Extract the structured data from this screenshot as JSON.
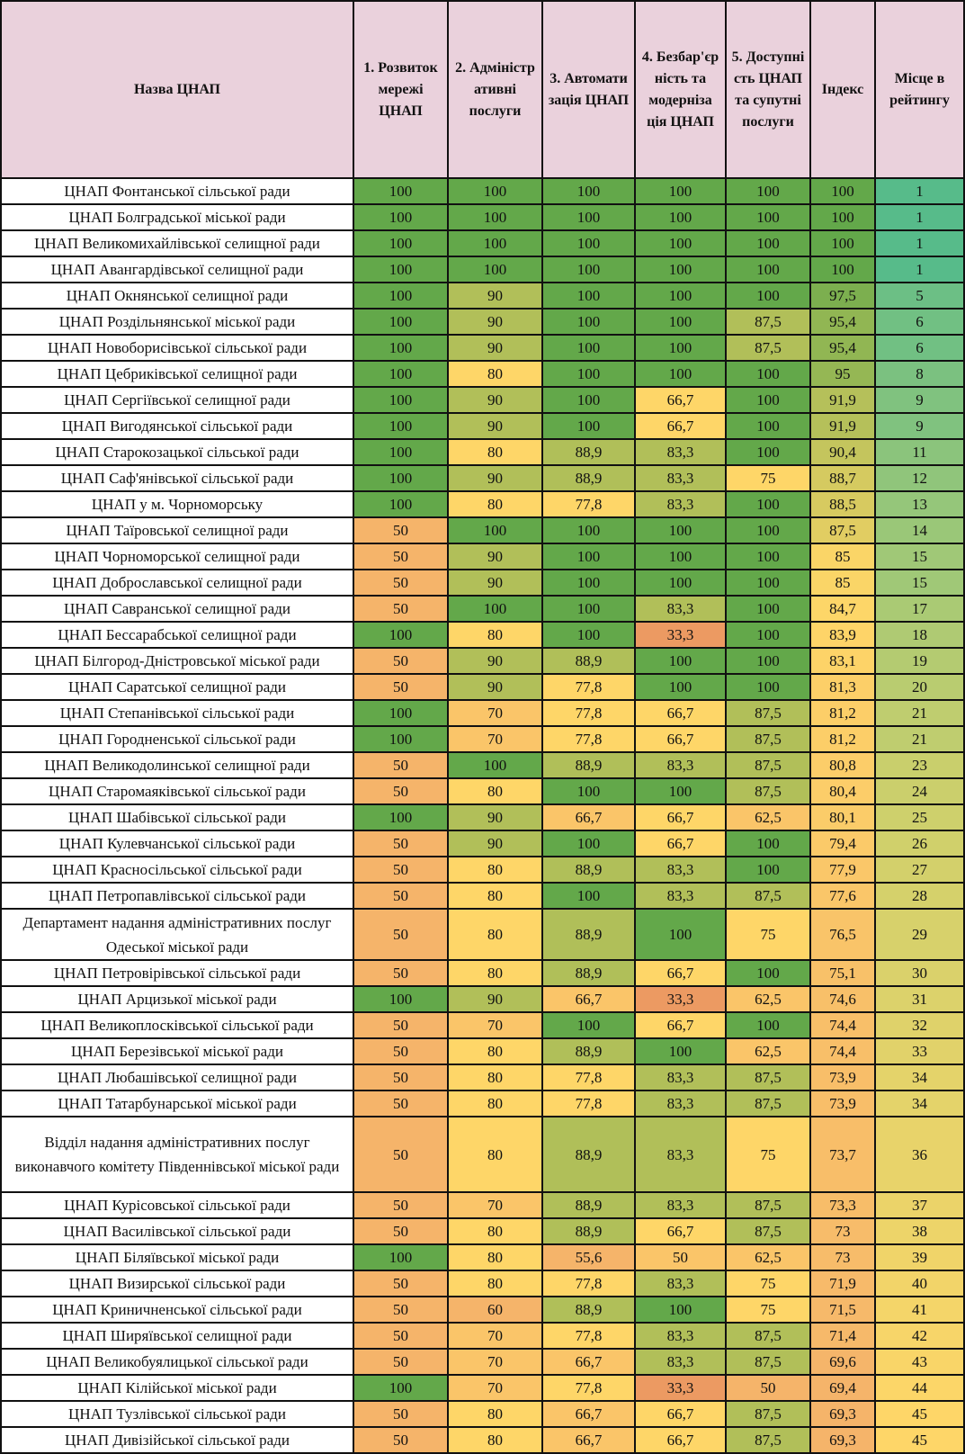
{
  "headers": [
    "Назва ЦНАП",
    "1. Розвиток мережі ЦНАП",
    "2. Адміністр ативні послуги",
    "3. Автомати зація ЦНАП",
    "4. Безбар'єр ність та модерніза ція ЦНАП",
    "5. Доступні сть ЦНАП та супутні послуги",
    "Індекс",
    "Місце в рейтингу"
  ],
  "rows": [
    [
      "ЦНАП Фонтанської сільської ради",
      "100",
      "100",
      "100",
      "100",
      "100",
      "100",
      "1"
    ],
    [
      "ЦНАП Болградської міської ради",
      "100",
      "100",
      "100",
      "100",
      "100",
      "100",
      "1"
    ],
    [
      "ЦНАП Великомихайлівської селищної ради",
      "100",
      "100",
      "100",
      "100",
      "100",
      "100",
      "1"
    ],
    [
      "ЦНАП Авангардівської селищної ради",
      "100",
      "100",
      "100",
      "100",
      "100",
      "100",
      "1"
    ],
    [
      "ЦНАП Окнянської селищної ради",
      "100",
      "90",
      "100",
      "100",
      "100",
      "97,5",
      "5"
    ],
    [
      "ЦНАП Роздільнянської міської ради",
      "100",
      "90",
      "100",
      "100",
      "87,5",
      "95,4",
      "6"
    ],
    [
      "ЦНАП Новоборисівської сільської ради",
      "100",
      "90",
      "100",
      "100",
      "87,5",
      "95,4",
      "6"
    ],
    [
      "ЦНАП Цебриківської селищної ради",
      "100",
      "80",
      "100",
      "100",
      "100",
      "95",
      "8"
    ],
    [
      "ЦНАП Сергіївської селищної ради",
      "100",
      "90",
      "100",
      "66,7",
      "100",
      "91,9",
      "9"
    ],
    [
      "ЦНАП Вигодянської сільської ради",
      "100",
      "90",
      "100",
      "66,7",
      "100",
      "91,9",
      "9"
    ],
    [
      "ЦНАП Старокозацької сільської ради",
      "100",
      "80",
      "88,9",
      "83,3",
      "100",
      "90,4",
      "11"
    ],
    [
      "ЦНАП Саф'янівської сільської ради",
      "100",
      "90",
      "88,9",
      "83,3",
      "75",
      "88,7",
      "12"
    ],
    [
      "ЦНАП у м. Чорноморську",
      "100",
      "80",
      "77,8",
      "83,3",
      "100",
      "88,5",
      "13"
    ],
    [
      "ЦНАП Таїровської селищної ради",
      "50",
      "100",
      "100",
      "100",
      "100",
      "87,5",
      "14"
    ],
    [
      "ЦНАП Чорноморської селищної ради",
      "50",
      "90",
      "100",
      "100",
      "100",
      "85",
      "15"
    ],
    [
      "ЦНАП Доброславської селищної ради",
      "50",
      "90",
      "100",
      "100",
      "100",
      "85",
      "15"
    ],
    [
      "ЦНАП Савранської селищної ради",
      "50",
      "100",
      "100",
      "83,3",
      "100",
      "84,7",
      "17"
    ],
    [
      "ЦНАП Бессарабської селищної ради",
      "100",
      "80",
      "100",
      "33,3",
      "100",
      "83,9",
      "18"
    ],
    [
      "ЦНАП Білгород-Дністровської міської ради",
      "50",
      "90",
      "88,9",
      "100",
      "100",
      "83,1",
      "19"
    ],
    [
      "ЦНАП Саратської селищної ради",
      "50",
      "90",
      "77,8",
      "100",
      "100",
      "81,3",
      "20"
    ],
    [
      "ЦНАП Степанівської сільської ради",
      "100",
      "70",
      "77,8",
      "66,7",
      "87,5",
      "81,2",
      "21"
    ],
    [
      "ЦНАП Городненської сільської ради",
      "100",
      "70",
      "77,8",
      "66,7",
      "87,5",
      "81,2",
      "21"
    ],
    [
      "ЦНАП Великодолинської селищної ради",
      "50",
      "100",
      "88,9",
      "83,3",
      "87,5",
      "80,8",
      "23"
    ],
    [
      "ЦНАП Старомаяківської сільської ради",
      "50",
      "80",
      "100",
      "100",
      "87,5",
      "80,4",
      "24"
    ],
    [
      "ЦНАП Шабівської сільської ради",
      "100",
      "90",
      "66,7",
      "66,7",
      "62,5",
      "80,1",
      "25"
    ],
    [
      "ЦНАП Кулевчанської сільської ради",
      "50",
      "90",
      "100",
      "66,7",
      "100",
      "79,4",
      "26"
    ],
    [
      "ЦНАП Красносільської сільської ради",
      "50",
      "80",
      "88,9",
      "83,3",
      "100",
      "77,9",
      "27"
    ],
    [
      "ЦНАП Петропавлівської сільської ради",
      "50",
      "80",
      "100",
      "83,3",
      "87,5",
      "77,6",
      "28"
    ],
    [
      "Департамент надання адміністративних послуг Одеської міської ради",
      "50",
      "80",
      "88,9",
      "100",
      "75",
      "76,5",
      "29"
    ],
    [
      "ЦНАП Петровірівської сільської ради",
      "50",
      "80",
      "88,9",
      "66,7",
      "100",
      "75,1",
      "30"
    ],
    [
      "ЦНАП Арцизької міської ради",
      "100",
      "90",
      "66,7",
      "33,3",
      "62,5",
      "74,6",
      "31"
    ],
    [
      "ЦНАП Великоплосківської сільської ради",
      "50",
      "70",
      "100",
      "66,7",
      "100",
      "74,4",
      "32"
    ],
    [
      "ЦНАП Березівської міської ради",
      "50",
      "80",
      "88,9",
      "100",
      "62,5",
      "74,4",
      "33"
    ],
    [
      "ЦНАП Любашівської селищної ради",
      "50",
      "80",
      "77,8",
      "83,3",
      "87,5",
      "73,9",
      "34"
    ],
    [
      "ЦНАП Татарбунарської міської ради",
      "50",
      "80",
      "77,8",
      "83,3",
      "87,5",
      "73,9",
      "34"
    ],
    [
      "Відділ надання адміністративних послуг виконавчого комітету Південнівської міської ради",
      "50",
      "80",
      "88,9",
      "83,3",
      "75",
      "73,7",
      "36"
    ],
    [
      "ЦНАП Курісовської сільської ради",
      "50",
      "70",
      "88,9",
      "83,3",
      "87,5",
      "73,3",
      "37"
    ],
    [
      "ЦНАП Василівської сільської ради",
      "50",
      "80",
      "88,9",
      "66,7",
      "87,5",
      "73",
      "38"
    ],
    [
      "ЦНАП Біляївської міської ради",
      "100",
      "80",
      "55,6",
      "50",
      "62,5",
      "73",
      "39"
    ],
    [
      "ЦНАП Визирської сільської ради",
      "50",
      "80",
      "77,8",
      "83,3",
      "75",
      "71,9",
      "40"
    ],
    [
      "ЦНАП Криничненської сільської ради",
      "50",
      "60",
      "88,9",
      "100",
      "75",
      "71,5",
      "41"
    ],
    [
      "ЦНАП Ширяївської селищної ради",
      "50",
      "70",
      "77,8",
      "83,3",
      "87,5",
      "71,4",
      "42"
    ],
    [
      "ЦНАП Великобуялицької сільської ради",
      "50",
      "70",
      "66,7",
      "83,3",
      "87,5",
      "69,6",
      "43"
    ],
    [
      "ЦНАП Кілійської міської ради",
      "100",
      "70",
      "77,8",
      "33,3",
      "50",
      "69,4",
      "44"
    ],
    [
      "ЦНАП Тузлівської сільської ради",
      "50",
      "80",
      "66,7",
      "66,7",
      "87,5",
      "69,3",
      "45"
    ],
    [
      "ЦНАП Дивізійської сільської ради",
      "50",
      "80",
      "66,7",
      "66,7",
      "87,5",
      "69,3",
      "45"
    ]
  ],
  "colors": {
    "header_bg": "#ead1dc",
    "low": "#f5b46a",
    "lowest": "#ec9a62",
    "mid": "#fed668",
    "high": "#63a84a",
    "rank_top": "#57bb8a"
  }
}
